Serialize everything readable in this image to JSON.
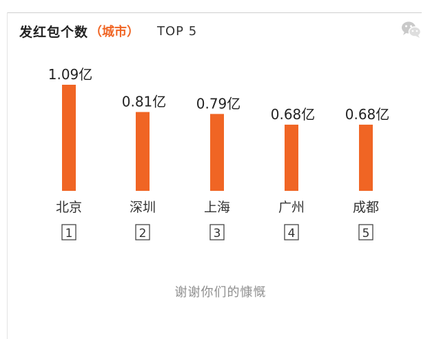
{
  "header": {
    "title": "发红包个数",
    "subtitle": "（城市）",
    "rank_label": "TOP 5"
  },
  "footer": {
    "text": "谢谢你们的慷慨"
  },
  "colors": {
    "bar": "#f06524",
    "subtitle": "#f06524",
    "text": "#222222",
    "footer": "#8f8f8f"
  },
  "icons": {
    "share": "wechat-icon"
  },
  "chart_data": {
    "type": "bar",
    "title": "发红包个数（城市） TOP 5",
    "categories": [
      "北京",
      "深圳",
      "上海",
      "广州",
      "成都"
    ],
    "ranks": [
      "1",
      "2",
      "3",
      "4",
      "5"
    ],
    "values": [
      1.09,
      0.81,
      0.79,
      0.68,
      0.68
    ],
    "data_labels": [
      "1.09亿",
      "0.81亿",
      "0.79亿",
      "0.68亿",
      "0.68亿"
    ],
    "unit": "亿",
    "ylim": [
      0,
      1.09
    ],
    "grid": false,
    "legend": "none"
  }
}
